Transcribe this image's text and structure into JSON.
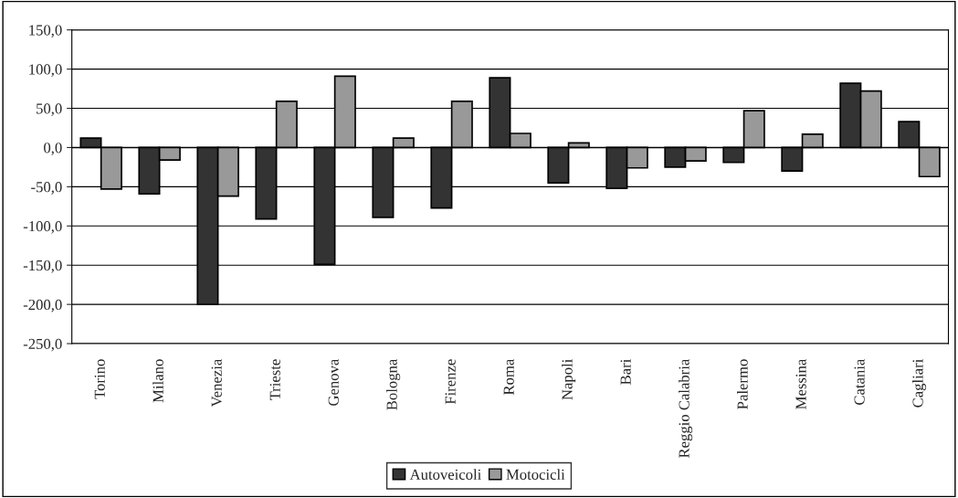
{
  "chart_data": {
    "type": "bar",
    "categories": [
      "Torino",
      "Milano",
      "Venezia",
      "Trieste",
      "Genova",
      "Bologna",
      "Firenze",
      "Roma",
      "Napoli",
      "Bari",
      "Reggio Calabria",
      "Palermo",
      "Messina",
      "Catania",
      "Cagliari"
    ],
    "series": [
      {
        "name": "Autoveicoli",
        "color": "#333333",
        "values": [
          12,
          -59,
          -200,
          -91,
          -149,
          -89,
          -77,
          89,
          -45,
          -52,
          -25,
          -19,
          -30,
          82,
          33
        ]
      },
      {
        "name": "Motocicli",
        "color": "#999999",
        "values": [
          -53,
          -16,
          -62,
          59,
          91,
          12,
          59,
          18,
          6,
          -26,
          -17,
          47,
          17,
          72,
          -37
        ]
      }
    ],
    "ylim": [
      -250,
      150
    ],
    "yticks": [
      {
        "value": -250,
        "label": "-250,0"
      },
      {
        "value": -200,
        "label": "-200,0"
      },
      {
        "value": -150,
        "label": "-150,0"
      },
      {
        "value": -100,
        "label": "-100,0"
      },
      {
        "value": -50,
        "label": "-50,0"
      },
      {
        "value": 0,
        "label": "0,0"
      },
      {
        "value": 50,
        "label": "50,0"
      },
      {
        "value": 100,
        "label": "100,0"
      },
      {
        "value": 150,
        "label": "150,0"
      }
    ],
    "grid": "y",
    "legend": "bottom"
  }
}
